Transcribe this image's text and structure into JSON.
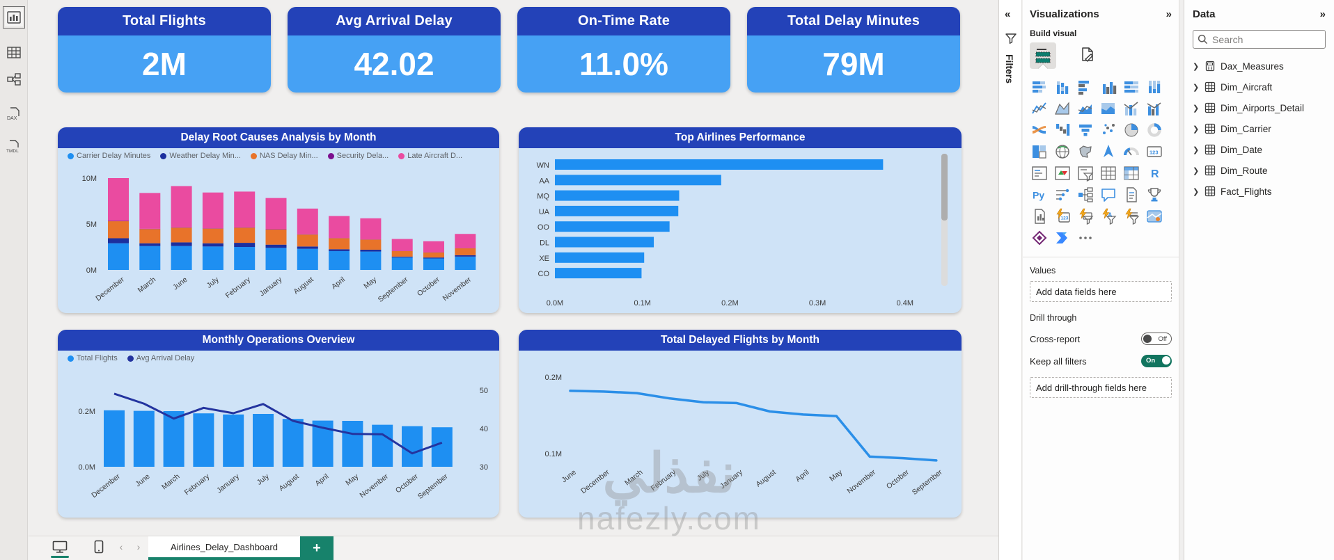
{
  "theme": {
    "header_blue": "#2342b8",
    "card_blue": "#46a1f4",
    "panel_bg": "#cfe3f7",
    "bar_blue": "#1e8ff2",
    "accent_green": "#17826b"
  },
  "left_rail": {
    "items": [
      {
        "name": "report-view",
        "selected": true
      },
      {
        "name": "table-view",
        "selected": false
      },
      {
        "name": "model-view",
        "selected": false
      },
      {
        "name": "dax-query-view",
        "selected": false
      },
      {
        "name": "tmdl-view",
        "selected": false
      }
    ]
  },
  "canvas": {
    "kpi_cards": [
      {
        "title": "Total Flights",
        "value": "2M"
      },
      {
        "title": "Avg Arrival Delay",
        "value": "42.02"
      },
      {
        "title": "On-Time Rate",
        "value": "11.0%"
      },
      {
        "title": "Total Delay Minutes",
        "value": "79M"
      }
    ],
    "watermark": {
      "line1": "نفذلي",
      "line2": "nafezly.com"
    }
  },
  "chart_data": [
    {
      "type": "bar",
      "subtype": "stacked-column",
      "title": "Delay Root Causes Analysis by Month",
      "categories": [
        "December",
        "March",
        "June",
        "July",
        "February",
        "January",
        "August",
        "April",
        "May",
        "September",
        "October",
        "November"
      ],
      "unit": "millions of minutes",
      "series": [
        {
          "name": "Carrier Delay Minutes",
          "color": "#1e8ff2",
          "values": [
            2.9,
            2.6,
            2.6,
            2.55,
            2.5,
            2.4,
            2.3,
            2.05,
            2.0,
            1.35,
            1.25,
            1.45
          ]
        },
        {
          "name": "Weather Delay Min...",
          "color": "#1c2f9e",
          "values": [
            0.55,
            0.3,
            0.4,
            0.35,
            0.45,
            0.35,
            0.25,
            0.2,
            0.2,
            0.1,
            0.1,
            0.15
          ]
        },
        {
          "name": "NAS Delay Min...",
          "color": "#e8732a",
          "values": [
            1.85,
            1.55,
            1.6,
            1.6,
            1.65,
            1.65,
            1.3,
            1.2,
            1.1,
            0.6,
            0.55,
            0.75
          ]
        },
        {
          "name": "Security Dela...",
          "color": "#7c0f8e",
          "values": [
            0.05,
            0.03,
            0.03,
            0.03,
            0.03,
            0.03,
            0.03,
            0.02,
            0.02,
            0.02,
            0.02,
            0.02
          ]
        },
        {
          "name": "Late Aircraft D...",
          "color": "#ea4ba0",
          "values": [
            4.65,
            3.9,
            4.5,
            3.9,
            3.9,
            3.4,
            2.8,
            2.4,
            2.3,
            1.3,
            1.2,
            1.55
          ]
        }
      ],
      "y_ticks": [
        "10M",
        "5M",
        "0M"
      ],
      "ylim": [
        0,
        10
      ],
      "legend_position": "top"
    },
    {
      "type": "bar",
      "subtype": "horizontal",
      "title": "Top Airlines Performance",
      "categories": [
        "WN",
        "AA",
        "MQ",
        "UA",
        "OO",
        "DL",
        "XE",
        "CO"
      ],
      "values": [
        0.375,
        0.19,
        0.142,
        0.141,
        0.131,
        0.113,
        0.102,
        0.099
      ],
      "unit": "millions of flights",
      "x_ticks": [
        "0.0M",
        "0.1M",
        "0.2M",
        "0.3M",
        "0.4M"
      ],
      "xlim": [
        0,
        0.4
      ],
      "color": "#1e8ff2",
      "has_scrollbar": true
    },
    {
      "type": "combo",
      "title": "Monthly Operations Overview",
      "categories": [
        "December",
        "June",
        "March",
        "February",
        "January",
        "July",
        "August",
        "April",
        "May",
        "November",
        "October",
        "September"
      ],
      "bar_series": {
        "name": "Total Flights",
        "color": "#1e8ff2",
        "values": [
          0.203,
          0.201,
          0.2,
          0.192,
          0.188,
          0.19,
          0.172,
          0.166,
          0.165,
          0.151,
          0.146,
          0.142
        ]
      },
      "line_series": {
        "name": "Avg Arrival Delay",
        "color": "#24349f",
        "values": [
          49.1,
          46.5,
          42.6,
          45.4,
          44.0,
          46.4,
          42.0,
          40.2,
          38.6,
          38.5,
          33.5,
          36.3
        ]
      },
      "left_ticks": [
        "0.2M",
        "0.0M"
      ],
      "right_ticks": [
        "50",
        "40",
        "30"
      ],
      "right_ylim": [
        30,
        50
      ],
      "legend_position": "top"
    },
    {
      "type": "line",
      "title": "Total Delayed Flights by Month",
      "categories": [
        "June",
        "December",
        "March",
        "February",
        "July",
        "January",
        "August",
        "April",
        "May",
        "November",
        "October",
        "September"
      ],
      "values": [
        0.182,
        0.181,
        0.179,
        0.172,
        0.167,
        0.166,
        0.155,
        0.151,
        0.149,
        0.096,
        0.094,
        0.091
      ],
      "unit": "millions of flights",
      "y_ticks": [
        "0.2M",
        "0.1M"
      ],
      "color": "#2b8fe8"
    }
  ],
  "bottom_bar": {
    "tab_label": "Airlines_Delay_Dashboard",
    "add_label": "+"
  },
  "filters_pane": {
    "collapse_glyph": "«",
    "label": "Filters"
  },
  "viz_pane": {
    "title": "Visualizations",
    "expand_glyph": "»",
    "build_visual_label": "Build visual",
    "values_label": "Values",
    "values_placeholder": "Add data fields here",
    "drill_label": "Drill through",
    "cross_report_label": "Cross-report",
    "cross_report_state": "Off",
    "keep_filters_label": "Keep all filters",
    "keep_filters_state": "On",
    "drill_placeholder": "Add drill-through fields here",
    "gallery": [
      "stacked-bar-chart",
      "stacked-column-chart",
      "clustered-bar-chart",
      "clustered-column-chart",
      "100-stacked-bar-chart",
      "100-stacked-column-chart",
      "line-chart",
      "area-chart",
      "stacked-area-chart",
      "100-stacked-area-chart",
      "line-and-stacked-column-chart",
      "line-and-clustered-column-chart",
      "ribbon-chart",
      "waterfall-chart",
      "funnel-chart",
      "scatter-chart",
      "pie-chart",
      "donut-chart",
      "treemap",
      "map",
      "filled-map",
      "azure-map",
      "gauge",
      "card",
      "multi-row-card",
      "kpi",
      "slicer",
      "table",
      "matrix",
      "r-script-visual",
      "python-visual",
      "key-influencers",
      "decomposition-tree",
      "qa-visual",
      "smart-narrative",
      "metrics",
      "paginated-report",
      "card-new",
      "button-slicer",
      "text-slicer",
      "list-slicer",
      "arcgis-map",
      "power-apps",
      "power-automate",
      "get-more-visuals"
    ]
  },
  "data_pane": {
    "title": "Data",
    "expand_glyph": "»",
    "search_placeholder": "Search",
    "tables": [
      {
        "name": "Dax_Measures",
        "icon": "calculator-icon"
      },
      {
        "name": "Dim_Aircraft",
        "icon": "table-icon"
      },
      {
        "name": "Dim_Airports_Detail",
        "icon": "table-icon"
      },
      {
        "name": "Dim_Carrier",
        "icon": "table-icon"
      },
      {
        "name": "Dim_Date",
        "icon": "table-icon"
      },
      {
        "name": "Dim_Route",
        "icon": "table-icon"
      },
      {
        "name": "Fact_Flights",
        "icon": "table-icon"
      }
    ]
  }
}
